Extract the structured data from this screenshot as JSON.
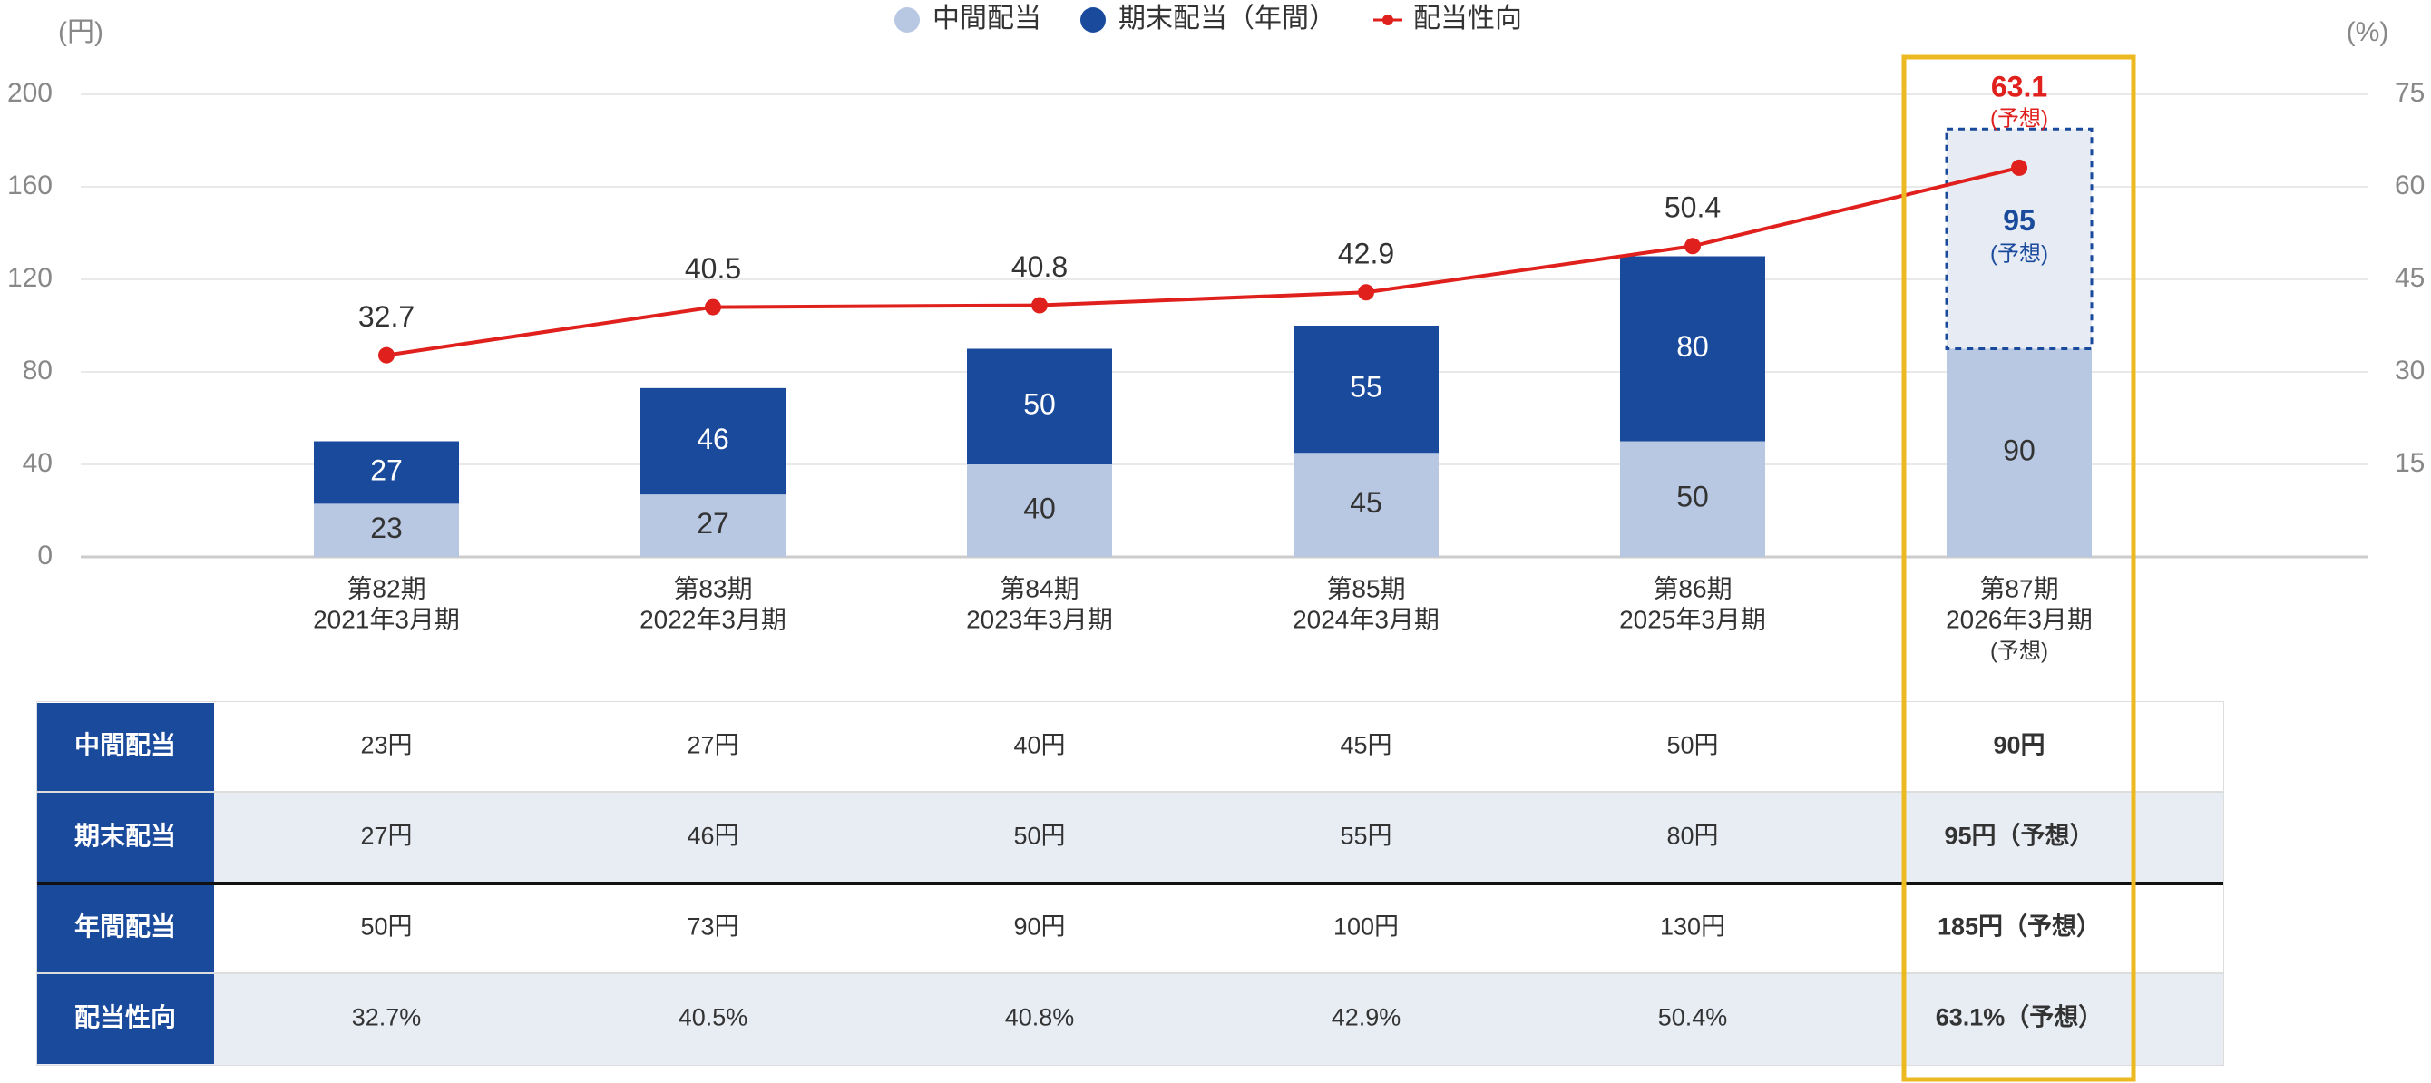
{
  "chart_data": {
    "type": "stacked-bar-line",
    "y_label": "(円)",
    "y2_label": "(%)",
    "categories": [
      [
        "第82期",
        "2021年3月期"
      ],
      [
        "第83期",
        "2022年3月期"
      ],
      [
        "第84期",
        "2023年3月期"
      ],
      [
        "第85期",
        "2024年3月期"
      ],
      [
        "第86期",
        "2025年3月期"
      ],
      [
        "第87期",
        "2026年3月期",
        "(予想)"
      ]
    ],
    "series": [
      {
        "name": "中間配当",
        "color": "#b8c7e2",
        "values": [
          23,
          27,
          40,
          45,
          50,
          90
        ]
      },
      {
        "name": "期末配当（年間）",
        "color": "#1a4a9c",
        "values": [
          27,
          46,
          50,
          55,
          80,
          95
        ]
      },
      {
        "name": "配当性向",
        "color": "#e0201c",
        "axis": "y2",
        "values": [
          32.7,
          40.5,
          40.8,
          42.9,
          50.4,
          63.1
        ]
      }
    ],
    "forecast_note": "(予想)",
    "ylim": [
      0,
      200
    ],
    "yticks": [
      0,
      40,
      80,
      120,
      160,
      200
    ],
    "y2lim": [
      0,
      75
    ],
    "y2ticks": [
      15,
      30,
      45,
      60,
      75
    ],
    "grid": true
  },
  "table": {
    "rows": [
      [
        "中間配当",
        "23円",
        "27円",
        "40円",
        "45円",
        "50円",
        "90円"
      ],
      [
        "期末配当",
        "27円",
        "46円",
        "50円",
        "55円",
        "80円",
        "95円（予想）"
      ],
      [
        "年間配当",
        "50円",
        "73円",
        "90円",
        "100円",
        "130円",
        "185円（予想）"
      ],
      [
        "配当性向",
        "32.7%",
        "40.5%",
        "40.8%",
        "42.9%",
        "50.4%",
        "63.1%（予想）"
      ]
    ]
  }
}
